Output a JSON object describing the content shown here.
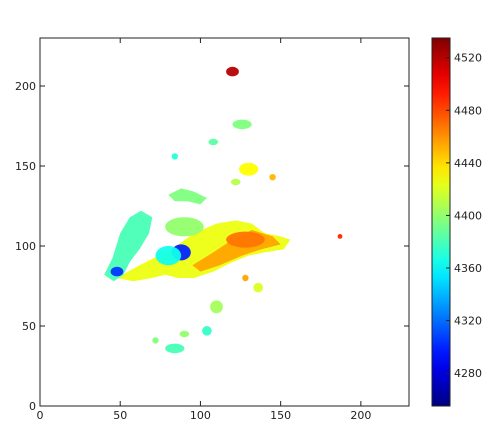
{
  "chart_data": {
    "type": "heatmap",
    "title": "",
    "xlabel": "",
    "ylabel": "",
    "xlim": [
      0,
      230
    ],
    "ylim": [
      0,
      230
    ],
    "x_ticks": [
      0,
      50,
      100,
      150,
      200
    ],
    "y_ticks": [
      0,
      50,
      100,
      150,
      200
    ],
    "colorbar": {
      "colormap": "jet",
      "range": [
        4255,
        4535
      ],
      "ticks": [
        4280,
        4320,
        4360,
        4400,
        4440,
        4480,
        4520
      ]
    },
    "regions": [
      {
        "name": "main-body",
        "shape": "polygon",
        "fill_value": 4425,
        "points": [
          [
            48,
            80
          ],
          [
            62,
            88
          ],
          [
            82,
            98
          ],
          [
            96,
            108
          ],
          [
            110,
            114
          ],
          [
            122,
            116
          ],
          [
            132,
            114
          ],
          [
            140,
            108
          ],
          [
            150,
            106
          ],
          [
            156,
            104
          ],
          [
            152,
            98
          ],
          [
            140,
            96
          ],
          [
            130,
            94
          ],
          [
            120,
            90
          ],
          [
            108,
            84
          ],
          [
            96,
            80
          ],
          [
            86,
            80
          ],
          [
            78,
            82
          ],
          [
            70,
            80
          ],
          [
            58,
            78
          ]
        ]
      },
      {
        "name": "body-core",
        "shape": "polygon",
        "fill_value": 4455,
        "points": [
          [
            95,
            88
          ],
          [
            108,
            96
          ],
          [
            120,
            104
          ],
          [
            132,
            110
          ],
          [
            145,
            106
          ],
          [
            150,
            101
          ],
          [
            138,
            98
          ],
          [
            126,
            94
          ],
          [
            112,
            88
          ],
          [
            100,
            84
          ]
        ]
      },
      {
        "name": "body-hot",
        "shape": "ellipse",
        "fill_value": 4468,
        "cx": 128,
        "cy": 104,
        "rx": 12,
        "ry": 5
      },
      {
        "name": "west-arm",
        "shape": "polygon",
        "fill_value": 4380,
        "points": [
          [
            40,
            82
          ],
          [
            45,
            92
          ],
          [
            50,
            108
          ],
          [
            56,
            118
          ],
          [
            63,
            122
          ],
          [
            70,
            118
          ],
          [
            68,
            108
          ],
          [
            62,
            98
          ],
          [
            56,
            90
          ],
          [
            52,
            82
          ],
          [
            46,
            78
          ]
        ]
      },
      {
        "name": "blue-core",
        "shape": "ellipse",
        "fill_value": 4300,
        "cx": 88,
        "cy": 96,
        "rx": 6,
        "ry": 5
      },
      {
        "name": "blue-knot-west",
        "shape": "ellipse",
        "fill_value": 4305,
        "cx": 48,
        "cy": 84,
        "rx": 4,
        "ry": 3
      },
      {
        "name": "cyan-patch",
        "shape": "ellipse",
        "fill_value": 4365,
        "cx": 80,
        "cy": 94,
        "rx": 8,
        "ry": 6
      },
      {
        "name": "green-northwest",
        "shape": "ellipse",
        "fill_value": 4400,
        "cx": 90,
        "cy": 112,
        "rx": 12,
        "ry": 6
      },
      {
        "name": "arm-top",
        "shape": "polygon",
        "fill_value": 4395,
        "points": [
          [
            80,
            132
          ],
          [
            88,
            136
          ],
          [
            96,
            134
          ],
          [
            104,
            130
          ],
          [
            100,
            126
          ],
          [
            92,
            128
          ],
          [
            84,
            128
          ]
        ]
      },
      {
        "name": "clump-high",
        "shape": "ellipse",
        "fill_value": 4395,
        "cx": 126,
        "cy": 176,
        "rx": 6,
        "ry": 3
      },
      {
        "name": "clump-mid-left",
        "shape": "ellipse",
        "fill_value": 4385,
        "cx": 108,
        "cy": 165,
        "rx": 3,
        "ry": 2
      },
      {
        "name": "clump-mid-right",
        "shape": "ellipse",
        "fill_value": 4430,
        "cx": 130,
        "cy": 148,
        "rx": 6,
        "ry": 4
      },
      {
        "name": "clump-tiny-a",
        "shape": "ellipse",
        "fill_value": 4450,
        "cx": 145,
        "cy": 143,
        "rx": 2,
        "ry": 2
      },
      {
        "name": "clump-tiny-b",
        "shape": "ellipse",
        "fill_value": 4410,
        "cx": 122,
        "cy": 140,
        "rx": 3,
        "ry": 2
      },
      {
        "name": "clump-tiny-c",
        "shape": "ellipse",
        "fill_value": 4370,
        "cx": 84,
        "cy": 156,
        "rx": 2,
        "ry": 2
      },
      {
        "name": "clump-east-a",
        "shape": "ellipse",
        "fill_value": 4455,
        "cx": 128,
        "cy": 80,
        "rx": 2,
        "ry": 2
      },
      {
        "name": "clump-east-b",
        "shape": "ellipse",
        "fill_value": 4420,
        "cx": 136,
        "cy": 74,
        "rx": 3,
        "ry": 3
      },
      {
        "name": "hotspot-top",
        "shape": "ellipse",
        "fill_value": 4520,
        "cx": 120,
        "cy": 209,
        "rx": 4,
        "ry": 3
      },
      {
        "name": "south-blob-1",
        "shape": "ellipse",
        "fill_value": 4405,
        "cx": 110,
        "cy": 62,
        "rx": 4,
        "ry": 4
      },
      {
        "name": "south-blob-2",
        "shape": "ellipse",
        "fill_value": 4375,
        "cx": 104,
        "cy": 47,
        "rx": 3,
        "ry": 3
      },
      {
        "name": "south-blob-3",
        "shape": "ellipse",
        "fill_value": 4400,
        "cx": 90,
        "cy": 45,
        "rx": 3,
        "ry": 2
      },
      {
        "name": "south-blob-4",
        "shape": "ellipse",
        "fill_value": 4380,
        "cx": 84,
        "cy": 36,
        "rx": 6,
        "ry": 3
      },
      {
        "name": "south-blob-5",
        "shape": "ellipse",
        "fill_value": 4395,
        "cx": 72,
        "cy": 41,
        "rx": 2,
        "ry": 2
      },
      {
        "name": "outlier-east",
        "shape": "ellipse",
        "fill_value": 4490,
        "cx": 187,
        "cy": 106,
        "rx": 1.5,
        "ry": 1.5
      }
    ]
  }
}
